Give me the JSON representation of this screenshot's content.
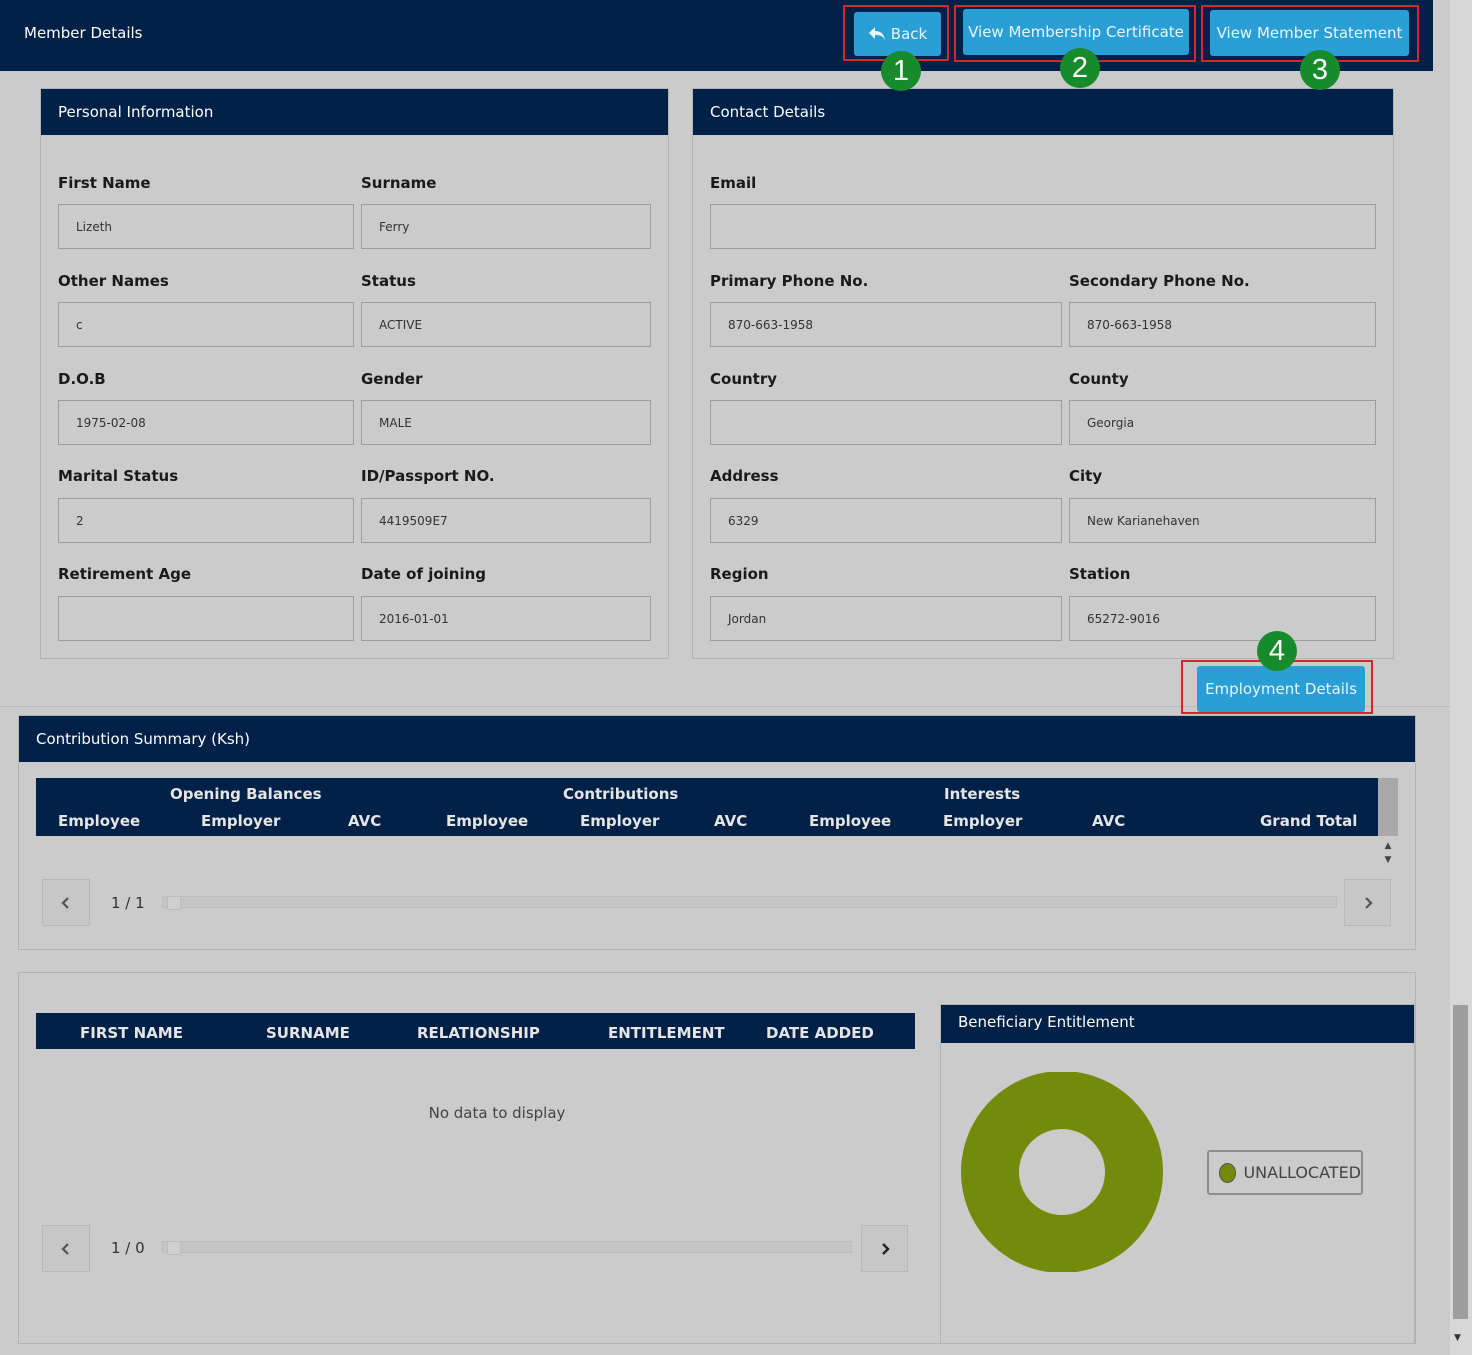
{
  "header": {
    "title": "Member Details",
    "back_label": "Back",
    "certificate_label": "View Membership Certificate",
    "statement_label": "View Member Statement"
  },
  "badges": [
    "1",
    "2",
    "3",
    "4"
  ],
  "personal": {
    "title": "Personal Information",
    "fields": {
      "first_name": {
        "label": "First Name",
        "value": "Lizeth"
      },
      "surname": {
        "label": "Surname",
        "value": "Ferry"
      },
      "other_names": {
        "label": "Other Names",
        "value": "c"
      },
      "status": {
        "label": "Status",
        "value": "ACTIVE"
      },
      "dob": {
        "label": "D.O.B",
        "value": "1975-02-08"
      },
      "gender": {
        "label": "Gender",
        "value": "MALE"
      },
      "marital": {
        "label": "Marital Status",
        "value": "2"
      },
      "id_passport": {
        "label": "ID/Passport NO.",
        "value": "4419509E7"
      },
      "retirement_age": {
        "label": "Retirement Age",
        "value": ""
      },
      "date_joining": {
        "label": "Date of joining",
        "value": "2016-01-01"
      }
    }
  },
  "contact": {
    "title": "Contact Details",
    "fields": {
      "email": {
        "label": "Email",
        "value": ""
      },
      "primary_phone": {
        "label": "Primary Phone No.",
        "value": "870-663-1958"
      },
      "secondary_phone": {
        "label": "Secondary Phone No.",
        "value": "870-663-1958"
      },
      "country": {
        "label": "Country",
        "value": ""
      },
      "county": {
        "label": "County",
        "value": "Georgia"
      },
      "address": {
        "label": "Address",
        "value": "6329"
      },
      "city": {
        "label": "City",
        "value": "New Karianehaven"
      },
      "region": {
        "label": "Region",
        "value": "Jordan"
      },
      "station": {
        "label": "Station",
        "value": "65272-9016"
      }
    }
  },
  "employment_label": "Employment Details",
  "contribution": {
    "title": "Contribution Summary (Ksh)",
    "groups": [
      "Opening Balances",
      "Contributions",
      "Interests"
    ],
    "columns": [
      "Employee",
      "Employer",
      "AVC",
      "Employee",
      "Employer",
      "AVC",
      "Employee",
      "Employer",
      "AVC",
      "Grand Total"
    ],
    "page": "1 / 1"
  },
  "beneficiaries": {
    "columns": [
      "FIRST NAME",
      "SURNAME",
      "RELATIONSHIP",
      "ENTITLEMENT",
      "DATE ADDED"
    ],
    "empty_text": "No data to display",
    "page": "1 / 0"
  },
  "entitlement": {
    "title": "Beneficiary Entitlement",
    "legend": "UNALLOCATED",
    "color": "#738a0b"
  },
  "chart_data": {
    "type": "pie",
    "categories": [
      "UNALLOCATED"
    ],
    "values": [
      100
    ],
    "title": "Beneficiary Entitlement",
    "legend_position": "right"
  },
  "icons": {
    "back": "reply-arrow-icon",
    "prev": "chevron-left-icon",
    "next": "chevron-right-icon"
  }
}
